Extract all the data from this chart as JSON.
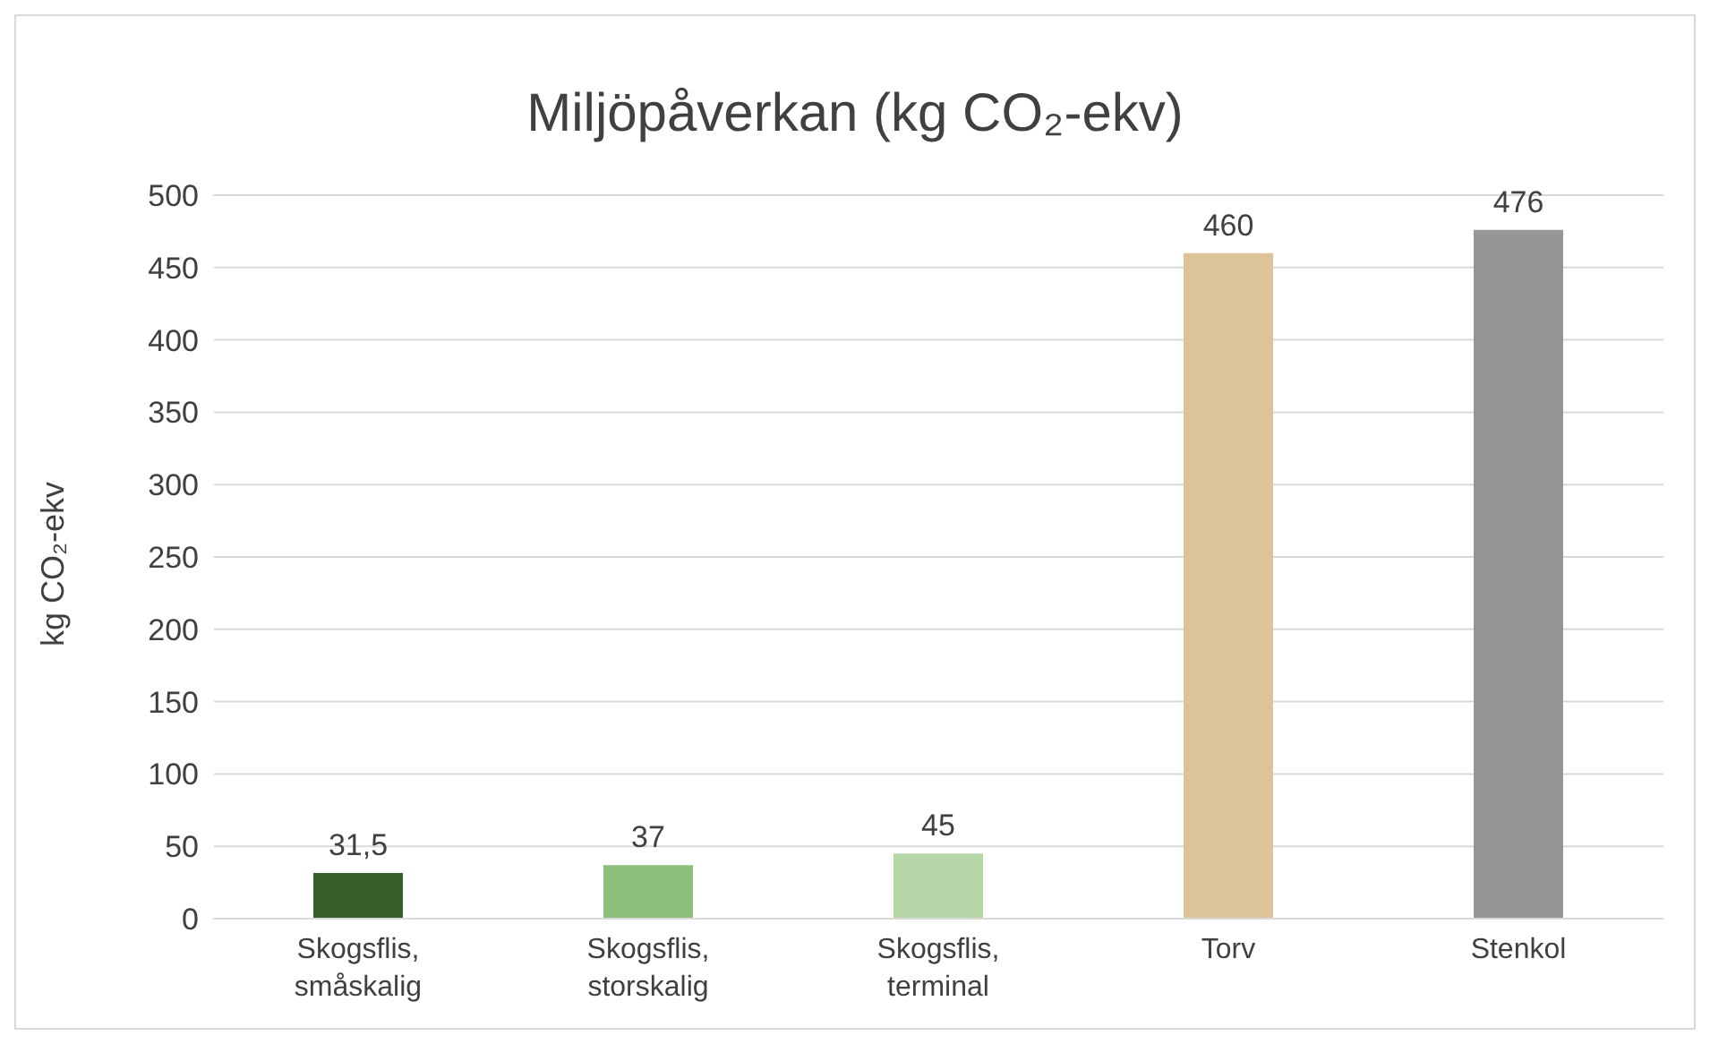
{
  "chart_data": {
    "type": "bar",
    "title": "Miljöpåverkan (kg CO₂-ekv)",
    "ylabel": "kg CO₂-ekv",
    "categories": [
      "Skogsflis, småskalig",
      "Skogsflis, storskalig",
      "Skogsflis, terminal",
      "Torv",
      "Stenkol"
    ],
    "values": [
      31.5,
      37,
      45,
      460,
      476
    ],
    "colors": [
      "#375f2a",
      "#8dc07b",
      "#b5d6a7",
      "#dcc39a",
      "#969696"
    ],
    "value_labels": [
      "31,5",
      "37",
      "45",
      "460",
      "476"
    ],
    "ylim": [
      0,
      500
    ],
    "yticks": [
      0,
      50,
      100,
      150,
      200,
      250,
      300,
      350,
      400,
      450,
      500
    ],
    "grid": "y"
  }
}
